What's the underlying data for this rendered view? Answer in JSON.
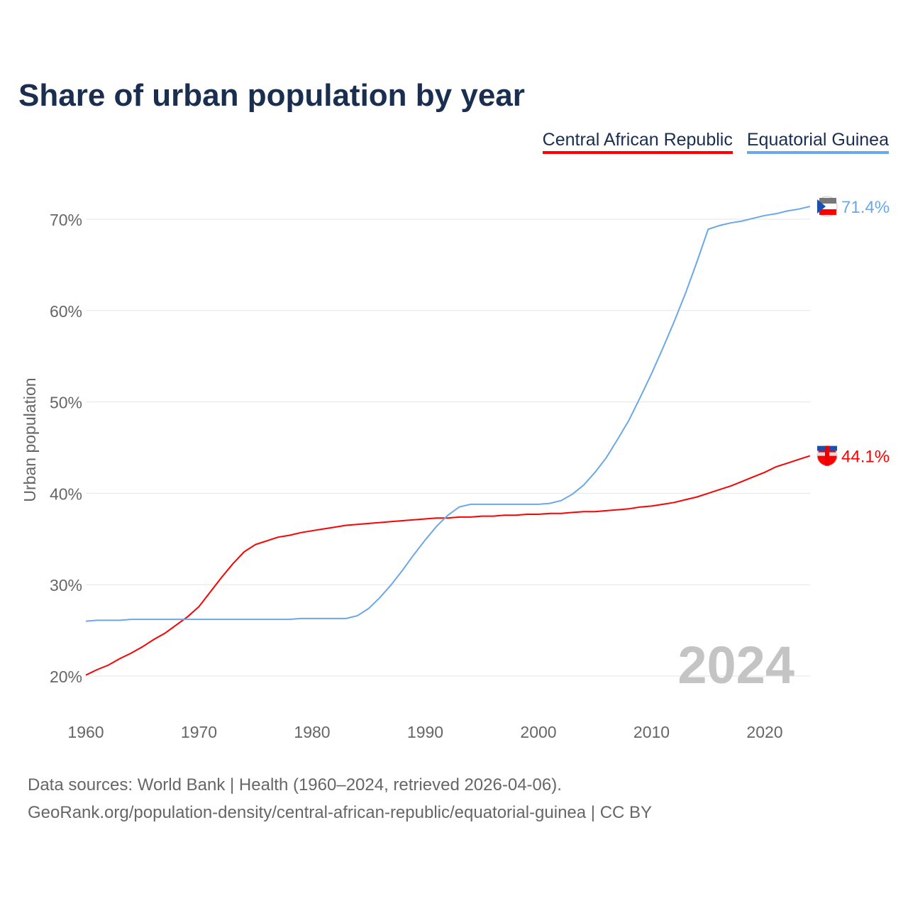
{
  "chart_data": {
    "type": "line",
    "title": "Share of urban population by year",
    "ylabel": "Urban population",
    "xlabel": "",
    "ylim": [
      20,
      72
    ],
    "xlim": [
      1960,
      2024
    ],
    "y_ticks": [
      "20%",
      "30%",
      "40%",
      "50%",
      "60%",
      "70%"
    ],
    "y_tick_values": [
      20,
      30,
      40,
      50,
      60,
      70
    ],
    "x_ticks": [
      "1960",
      "1970",
      "1980",
      "1990",
      "2000",
      "2010",
      "2020"
    ],
    "x_tick_values": [
      1960,
      1970,
      1980,
      1990,
      2000,
      2010,
      2020
    ],
    "grid": true,
    "legend_placement": "top-right",
    "year_label": "2024",
    "x": [
      1960,
      1961,
      1962,
      1963,
      1964,
      1965,
      1966,
      1967,
      1968,
      1969,
      1970,
      1971,
      1972,
      1973,
      1974,
      1975,
      1976,
      1977,
      1978,
      1979,
      1980,
      1981,
      1982,
      1983,
      1984,
      1985,
      1986,
      1987,
      1988,
      1989,
      1990,
      1991,
      1992,
      1993,
      1994,
      1995,
      1996,
      1997,
      1998,
      1999,
      2000,
      2001,
      2002,
      2003,
      2004,
      2005,
      2006,
      2007,
      2008,
      2009,
      2010,
      2011,
      2012,
      2013,
      2014,
      2015,
      2016,
      2017,
      2018,
      2019,
      2020,
      2021,
      2022,
      2023,
      2024
    ],
    "series": [
      {
        "name": "Central African Republic",
        "color": "#ff0000",
        "end_label": "44.1%",
        "values": [
          20.1,
          20.7,
          21.2,
          21.9,
          22.5,
          23.2,
          24.0,
          24.7,
          25.6,
          26.5,
          27.6,
          29.2,
          30.8,
          32.3,
          33.6,
          34.4,
          34.8,
          35.2,
          35.4,
          35.7,
          35.9,
          36.1,
          36.3,
          36.5,
          36.6,
          36.7,
          36.8,
          36.9,
          37.0,
          37.1,
          37.2,
          37.3,
          37.3,
          37.4,
          37.4,
          37.5,
          37.5,
          37.6,
          37.6,
          37.7,
          37.7,
          37.8,
          37.8,
          37.9,
          38.0,
          38.0,
          38.1,
          38.2,
          38.3,
          38.5,
          38.6,
          38.8,
          39.0,
          39.3,
          39.6,
          40.0,
          40.4,
          40.8,
          41.3,
          41.8,
          42.3,
          42.9,
          43.3,
          43.7,
          44.1
        ]
      },
      {
        "name": "Equatorial Guinea",
        "color": "#6aa8e8",
        "end_label": "71.4%",
        "values": [
          26.0,
          26.1,
          26.1,
          26.1,
          26.2,
          26.2,
          26.2,
          26.2,
          26.2,
          26.2,
          26.2,
          26.2,
          26.2,
          26.2,
          26.2,
          26.2,
          26.2,
          26.2,
          26.2,
          26.3,
          26.3,
          26.3,
          26.3,
          26.3,
          26.6,
          27.4,
          28.6,
          30.0,
          31.6,
          33.3,
          34.9,
          36.4,
          37.6,
          38.5,
          38.8,
          38.8,
          38.8,
          38.8,
          38.8,
          38.8,
          38.8,
          38.9,
          39.2,
          39.9,
          40.9,
          42.3,
          43.9,
          45.9,
          48.0,
          50.5,
          53.1,
          55.9,
          58.8,
          61.9,
          65.3,
          68.9,
          69.3,
          69.6,
          69.8,
          70.1,
          70.4,
          70.6,
          70.9,
          71.1,
          71.4
        ]
      }
    ]
  },
  "footer": {
    "line1": "Data sources: World Bank | Health (1960–2024, retrieved 2026-04-06).",
    "line2": "GeoRank.org/population-density/central-african-republic/equatorial-guinea | CC BY"
  }
}
